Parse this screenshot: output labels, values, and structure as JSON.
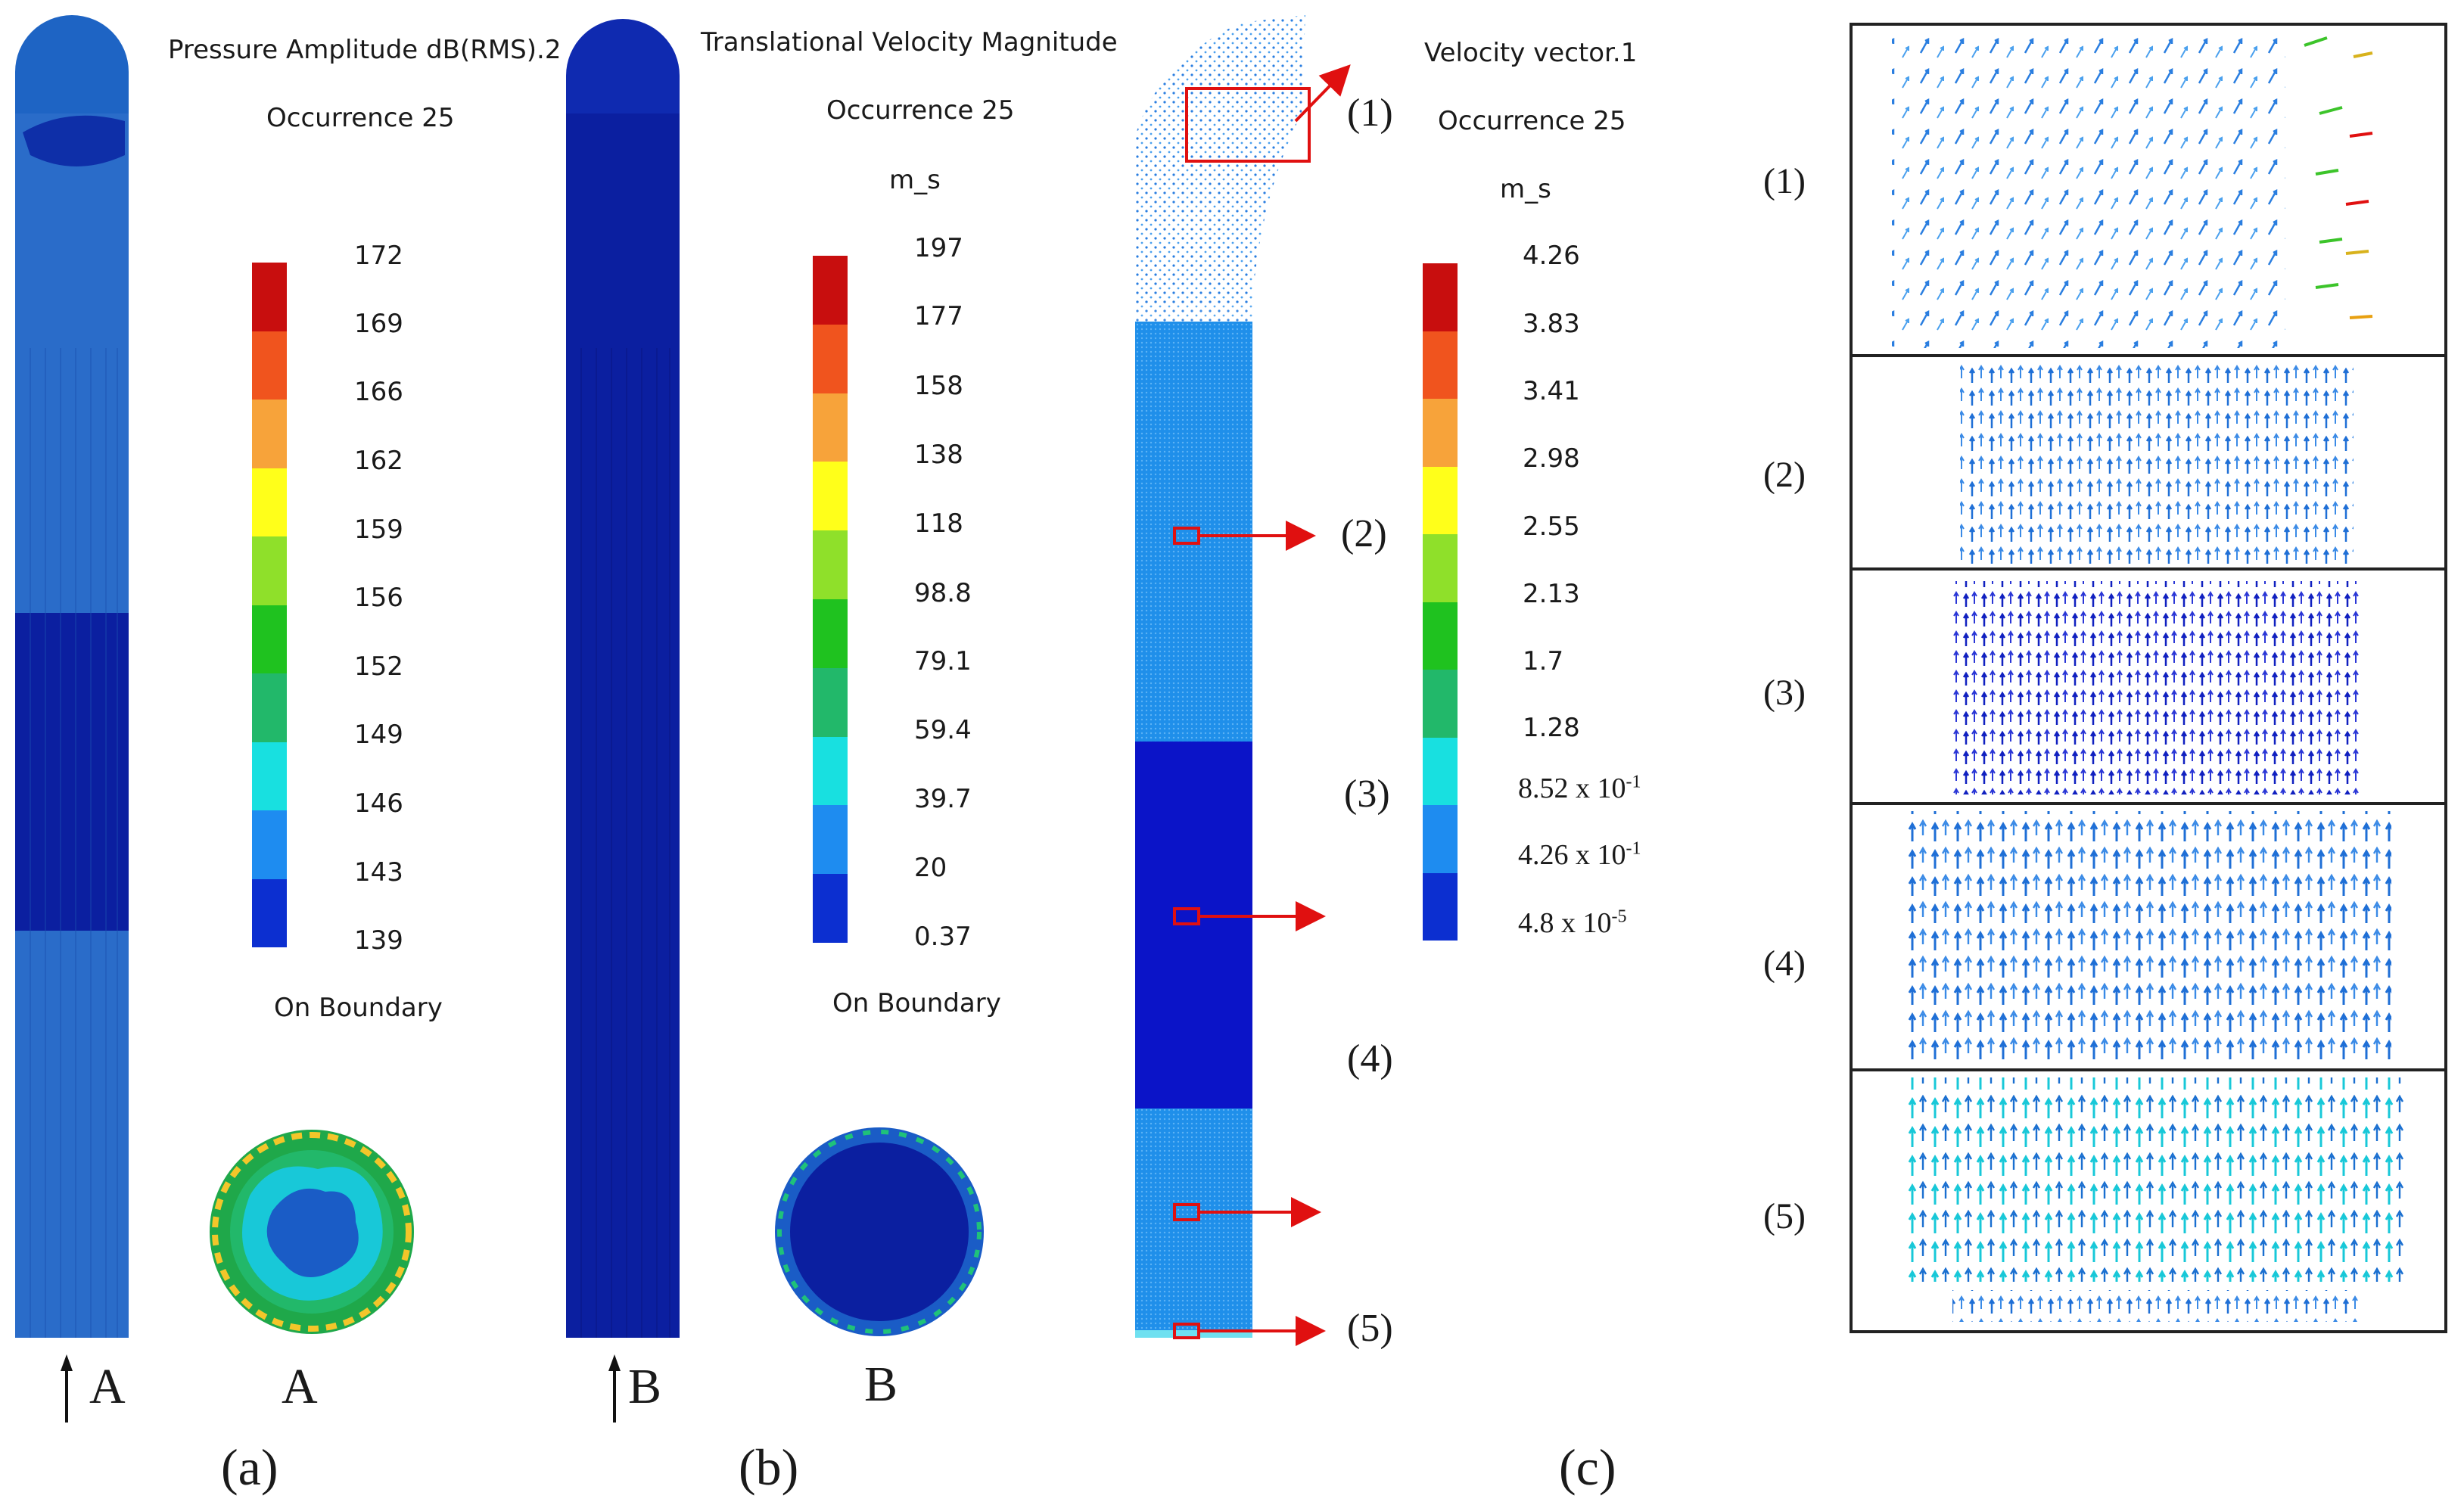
{
  "panel_a": {
    "title": "Pressure Amplitude dB(RMS).2",
    "occurrence": "Occurrence 25",
    "ticks": [
      "172",
      "169",
      "166",
      "162",
      "159",
      "156",
      "152",
      "149",
      "146",
      "143",
      "139"
    ],
    "boundary": "On Boundary",
    "arrow_label": "A",
    "section_label": "A",
    "caption": "(a)"
  },
  "panel_b": {
    "title": "Translational Velocity Magnitude",
    "occurrence": "Occurrence 25",
    "unit": "m_s",
    "ticks": [
      "197",
      "177",
      "158",
      "138",
      "118",
      "98.8",
      "79.1",
      "59.4",
      "39.7",
      "20",
      "0.37"
    ],
    "boundary": "On Boundary",
    "arrow_label": "B",
    "section_label": "B",
    "caption": "(b)"
  },
  "panel_c": {
    "title": "Velocity vector.1",
    "occurrence": "Occurrence 25",
    "unit": "m_s",
    "ticks": [
      "4.26",
      "3.83",
      "3.41",
      "2.98",
      "2.55",
      "2.13",
      "1.7",
      "1.28"
    ],
    "sci_ticks": [
      {
        "mant": "8.52 x 10",
        "exp": "-1"
      },
      {
        "mant": "4.26 x 10",
        "exp": "-1"
      },
      {
        "mant": "4.8 x 10",
        "exp": "-5"
      }
    ],
    "region_labels": [
      "(1)",
      "(2)",
      "(3)",
      "(4)",
      "(5)"
    ],
    "caption": "(c)"
  },
  "insets": {
    "labels": [
      "(1)",
      "(2)",
      "(3)",
      "(4)",
      "(5)"
    ]
  },
  "colormap": [
    "#c80e0e",
    "#f0541e",
    "#f7a33a",
    "#ffff1a",
    "#8fe02a",
    "#1fc21f",
    "#22b86a",
    "#18e0e0",
    "#1e8cf0",
    "#0c2fd0"
  ],
  "colors": {
    "dark_blue": "#0b1ea6",
    "mid_blue": "#2a78d6",
    "light_blue": "#1f8fea",
    "red": "#e01010"
  }
}
